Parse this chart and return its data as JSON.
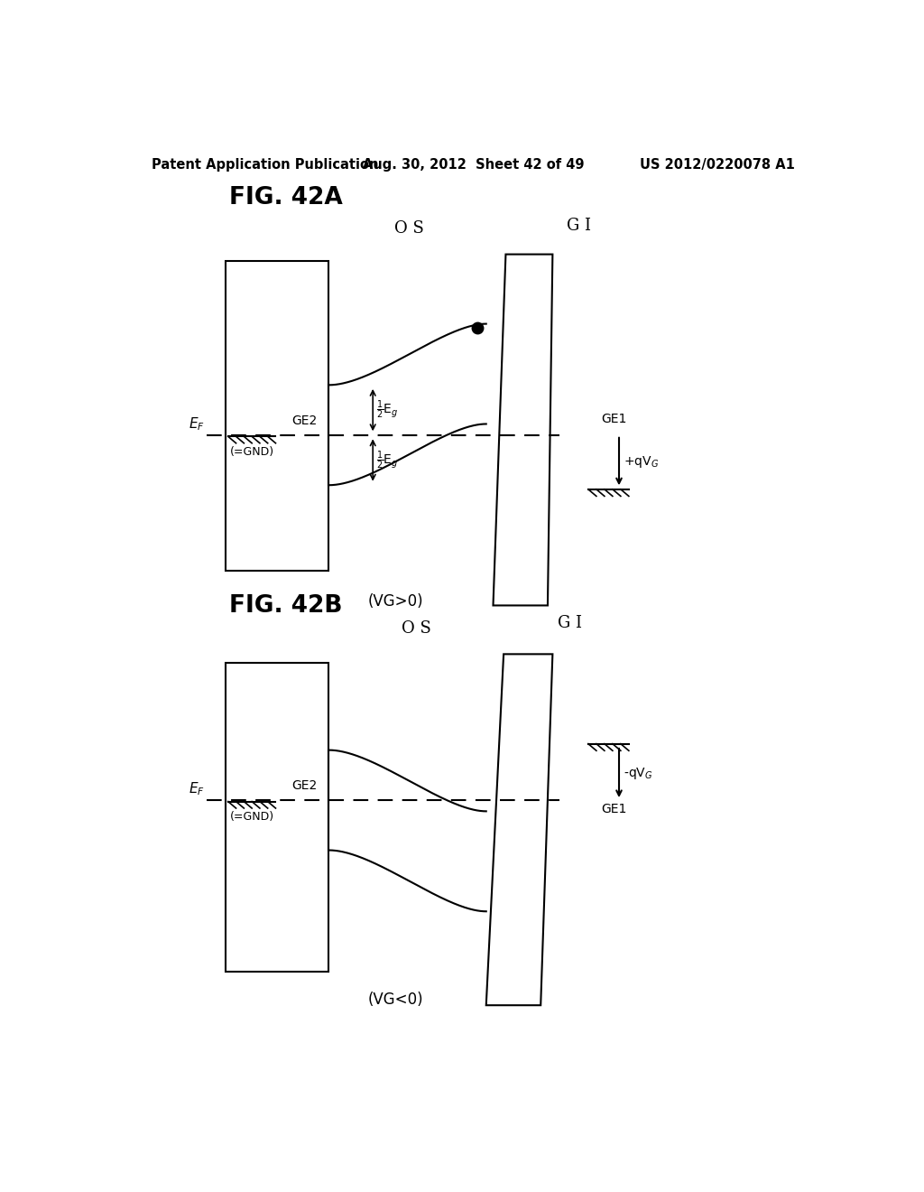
{
  "header_left": "Patent Application Publication",
  "header_center": "Aug. 30, 2012  Sheet 42 of 49",
  "header_right": "US 2012/0220078 A1",
  "fig_a_label": "FIG. 42A",
  "fig_b_label": "FIG. 42B",
  "caption_a": "(VG>0)",
  "caption_b": "(VG<0)",
  "background": "#ffffff",
  "line_color": "#000000"
}
